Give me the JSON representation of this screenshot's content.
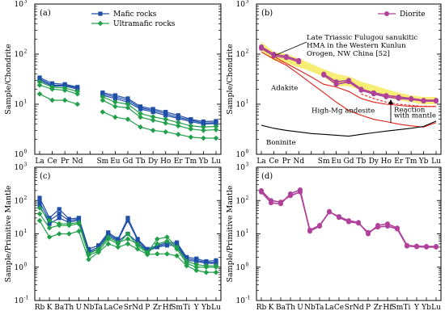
{
  "chart_data": [
    {
      "type": "line",
      "id": "a",
      "panel_label": "(a)",
      "ylabel": "Sample/Chondrite",
      "yscale": "log",
      "ylim": [
        1,
        1000
      ],
      "categories": [
        "La",
        "Ce",
        "Pr",
        "Nd",
        "Pm",
        "Sm",
        "Eu",
        "Gd",
        "Tb",
        "Dy",
        "Ho",
        "Er",
        "Tm",
        "Yb",
        "Lu"
      ],
      "tick_labels": [
        "La",
        "Ce",
        "Pr",
        "Nd",
        "",
        "Sm",
        "Eu",
        "Gd",
        "Tb",
        "Dy",
        "Ho",
        "Er",
        "Tm",
        "Yb",
        "Lu"
      ],
      "legend": [
        {
          "label": "Mafic rocks",
          "color": "#1f4fa8",
          "marker": "square"
        },
        {
          "label": "Ultramafic rocks",
          "color": "#21a04a",
          "marker": "diamond"
        }
      ],
      "series": [
        {
          "group": "mafic",
          "color": "#1f4fa8",
          "marker": "square",
          "values": [
            34,
            26,
            25,
            22,
            null,
            17,
            15,
            13,
            9,
            8,
            7,
            6,
            5,
            4.5,
            4.6
          ]
        },
        {
          "group": "mafic",
          "color": "#1f4fa8",
          "marker": "square",
          "values": [
            32,
            24,
            24,
            21,
            null,
            16,
            14,
            12,
            8.5,
            7.5,
            6.5,
            5.5,
            4.8,
            4.2,
            4.3
          ]
        },
        {
          "group": "mafic",
          "color": "#1f4fa8",
          "marker": "square",
          "values": [
            30,
            23,
            23,
            20,
            null,
            15,
            13,
            11,
            8,
            7,
            6,
            5.2,
            4.5,
            4,
            4.1
          ]
        },
        {
          "group": "ultramafic",
          "color": "#21a04a",
          "marker": "diamond",
          "values": [
            28,
            22,
            21,
            18,
            null,
            14,
            11,
            10,
            6.5,
            5.6,
            5,
            4.3,
            3.7,
            3.5,
            3.6
          ]
        },
        {
          "group": "ultramafic",
          "color": "#21a04a",
          "marker": "diamond",
          "values": [
            24,
            20,
            19,
            16,
            null,
            12,
            9,
            8.5,
            5.5,
            4.8,
            4.2,
            3.7,
            3.2,
            3,
            3.1
          ]
        },
        {
          "group": "ultramafic",
          "color": "#21a04a",
          "marker": "diamond",
          "values": [
            16,
            12,
            12,
            10,
            null,
            7,
            5.5,
            5,
            3.5,
            3,
            2.8,
            2.5,
            2.2,
            2.1,
            2.1
          ]
        }
      ]
    },
    {
      "type": "line",
      "id": "b",
      "panel_label": "(b)",
      "ylabel": "Sample/Chondrite",
      "yscale": "log",
      "ylim": [
        1,
        1000
      ],
      "categories": [
        "La",
        "Ce",
        "Pr",
        "Nd",
        "Pm",
        "Sm",
        "Eu",
        "Gd",
        "Tb",
        "Dy",
        "Ho",
        "Er",
        "Tm",
        "Yb",
        "Lu"
      ],
      "tick_labels": [
        "La",
        "Ce",
        "Pr",
        "Nd",
        "",
        "Sm",
        "Eu",
        "Gd",
        "Tb",
        "Dy",
        "Ho",
        "Er",
        "Tm",
        "Yb",
        "Lu"
      ],
      "legend": [
        {
          "label": "Diorite",
          "color": "#b0419a",
          "marker": "circle"
        }
      ],
      "reference_band": {
        "label": "Late Triassic Fulugou sanukitic HMA in the Western Kunlun Orogen, NW China [52]",
        "label_lines": [
          "Late Triassic Fulugou sanukitic",
          "HMA in the Western Kunlun",
          "Orogen, NW China [52]"
        ],
        "color": "#f6ec6e",
        "upper": [
          175,
          110,
          100,
          82,
          64,
          50,
          40,
          36,
          28,
          24,
          20,
          17,
          15,
          14,
          14
        ],
        "lower": [
          110,
          75,
          65,
          55,
          45,
          35,
          23,
          23,
          19,
          16,
          14,
          12,
          11,
          10,
          10
        ]
      },
      "reference_lines": [
        {
          "label": "Adakite",
          "color": "#e0201b",
          "dash": false,
          "values": [
            110,
            80,
            60,
            40,
            26,
            17,
            11,
            7.5,
            6,
            5,
            4.5,
            4,
            3.7,
            3.5,
            4.3
          ]
        },
        {
          "label": "High-Mg andesite",
          "color": "#e0201b",
          "dash": false,
          "values": [
            140,
            90,
            65,
            48,
            35,
            25,
            22,
            18,
            13,
            11,
            10,
            9.5,
            9,
            9,
            9
          ]
        },
        {
          "label": "Reaction with mantle",
          "color": "#e0201b",
          "dash": true,
          "values": [
            null,
            null,
            null,
            null,
            null,
            null,
            null,
            null,
            16,
            13,
            11,
            10,
            9.5,
            9,
            9
          ]
        },
        {
          "label": "Boninite",
          "color": "#000000",
          "dash": false,
          "values": [
            3.8,
            3.3,
            3,
            2.8,
            2.6,
            2.5,
            2.4,
            2.3,
            2.5,
            2.7,
            2.9,
            3.1,
            3.3,
            3.6,
            4.6
          ]
        }
      ],
      "series": [
        {
          "name": "Diorite",
          "color": "#b0419a",
          "marker": "circle",
          "values": [
            140,
            100,
            90,
            75,
            null,
            40,
            28,
            30,
            20,
            17,
            15,
            14,
            13,
            12,
            12
          ]
        },
        {
          "name": "Diorite",
          "color": "#b0419a",
          "marker": "circle",
          "values": [
            130,
            92,
            85,
            70,
            null,
            38,
            25,
            28,
            19,
            16,
            14,
            13,
            12.5,
            11.5,
            11.5
          ]
        }
      ],
      "annotations": [
        "Adakite",
        "High-Mg andesite",
        "Reaction",
        "with mantle",
        "Boninite"
      ]
    },
    {
      "type": "line",
      "id": "c",
      "panel_label": "(c)",
      "ylabel": "Sample/Primitive Mantle",
      "yscale": "log",
      "ylim": [
        0.1,
        1000
      ],
      "categories": [
        "Rb",
        "K",
        "Ba",
        "Th",
        "U",
        "Nb",
        "Ta",
        "La",
        "Ce",
        "Sr",
        "Nd",
        "P",
        "Zr",
        "Hf",
        "Sm",
        "Ti",
        "Y",
        "Yb",
        "Lu"
      ],
      "tick_labels": [
        "Rb",
        "K",
        "Ba",
        "Th",
        "U",
        "Nb",
        "Ta",
        "La",
        "Ce",
        "Sr",
        "Nd",
        "P",
        "Zr",
        "Hf",
        "Sm",
        "Ti",
        "Y",
        "Yb",
        "Lu"
      ],
      "series": [
        {
          "group": "mafic",
          "color": "#1f4fa8",
          "marker": "square",
          "values": [
            120,
            30,
            55,
            28,
            30,
            3.5,
            4.5,
            11,
            7,
            30,
            7,
            3.5,
            4.5,
            5.5,
            5.5,
            2,
            1.8,
            1.5,
            1.6
          ]
        },
        {
          "group": "mafic",
          "color": "#1f4fa8",
          "marker": "square",
          "values": [
            90,
            25,
            40,
            25,
            28,
            3,
            4,
            10,
            6.5,
            25,
            6.5,
            3.2,
            4.2,
            5,
            5,
            1.8,
            1.6,
            1.4,
            1.4
          ]
        },
        {
          "group": "mafic",
          "color": "#1f4fa8",
          "marker": "square",
          "values": [
            70,
            20,
            30,
            22,
            26,
            2.8,
            3.5,
            9,
            6,
            10,
            5.5,
            3,
            4,
            4.5,
            4.5,
            1.6,
            1.5,
            1.3,
            1.3
          ]
        },
        {
          "group": "ultramafic",
          "color": "#21a04a",
          "marker": "diamond",
          "values": [
            60,
            25,
            20,
            20,
            22,
            2.5,
            3.5,
            8,
            5.5,
            7,
            5,
            2.8,
            7,
            8,
            4,
            1.5,
            1.2,
            1.1,
            1.1
          ]
        },
        {
          "group": "ultramafic",
          "color": "#21a04a",
          "marker": "diamond",
          "values": [
            40,
            15,
            18,
            18,
            20,
            2.3,
            3,
            7,
            5,
            10,
            4.5,
            2.6,
            5,
            6,
            3.5,
            1.3,
            1,
            1,
            1
          ]
        },
        {
          "group": "ultramafic",
          "color": "#21a04a",
          "marker": "diamond",
          "values": [
            25,
            8,
            10,
            10,
            12,
            1.7,
            2.8,
            5,
            4,
            5,
            3.5,
            2.4,
            2.5,
            2.5,
            2.2,
            1.1,
            0.8,
            0.7,
            0.7
          ]
        }
      ]
    },
    {
      "type": "line",
      "id": "d",
      "panel_label": "(d)",
      "ylabel": "Sample/Primitive Mantle",
      "yscale": "log",
      "ylim": [
        0.1,
        1000
      ],
      "categories": [
        "Rb",
        "K",
        "Ba",
        "Th",
        "U",
        "Nb",
        "Ta",
        "La",
        "Ce",
        "Sr",
        "Nd",
        "P",
        "Zr",
        "Hf",
        "Sm",
        "Ti",
        "Y",
        "Yb",
        "Lu"
      ],
      "tick_labels": [
        "Rb",
        "K",
        "Ba",
        "Th",
        "U",
        "Nb",
        "Ta",
        "La",
        "Ce",
        "Sr",
        "Nd",
        "P",
        "Zr",
        "Hf",
        "Sm",
        "Ti",
        "Y",
        "Yb",
        "Lu"
      ],
      "series": [
        {
          "name": "Diorite",
          "color": "#b0419a",
          "marker": "circle",
          "values": [
            200,
            100,
            90,
            140,
            180,
            13,
            18,
            45,
            33,
            25,
            22,
            10,
            18,
            20,
            15,
            4.5,
            4.3,
            4.2,
            4.2
          ]
        },
        {
          "name": "Diorite",
          "color": "#b0419a",
          "marker": "circle",
          "values": [
            180,
            85,
            80,
            160,
            210,
            12,
            17,
            47,
            31,
            23,
            21,
            11,
            16,
            17,
            14,
            4.3,
            4.1,
            4,
            4
          ]
        }
      ]
    }
  ]
}
